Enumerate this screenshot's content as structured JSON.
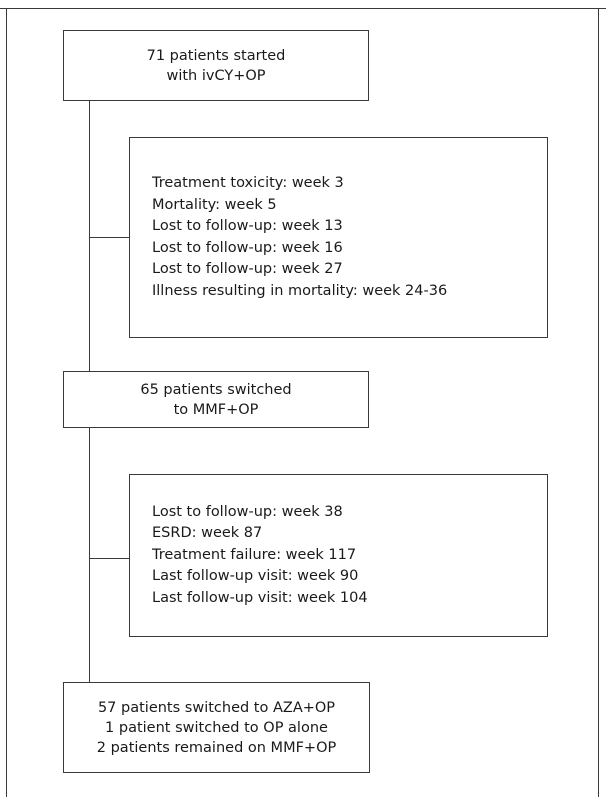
{
  "diagram": {
    "start_box": {
      "lines": [
        "71 patients started",
        "with ivCY+OP"
      ]
    },
    "exclusions_1": {
      "lines": [
        "Treatment toxicity: week 3",
        "Mortality: week 5",
        "Lost to follow-up: week 13",
        "Lost to follow-up: week 16",
        "Lost to follow-up: week 27",
        "Illness resulting in mortality: week 24-36"
      ]
    },
    "switch_box": {
      "lines": [
        "65 patients switched",
        "to MMF+OP"
      ]
    },
    "exclusions_2": {
      "lines": [
        "Lost to follow-up: week 38",
        "ESRD: week 87",
        "Treatment failure: week 117",
        "Last follow-up visit: week 90",
        "Last follow-up visit: week 104"
      ]
    },
    "final_box": {
      "lines": [
        "57 patients switched to AZA+OP",
        "1 patient switched to OP alone",
        "2 patients remained on MMF+OP"
      ]
    }
  }
}
